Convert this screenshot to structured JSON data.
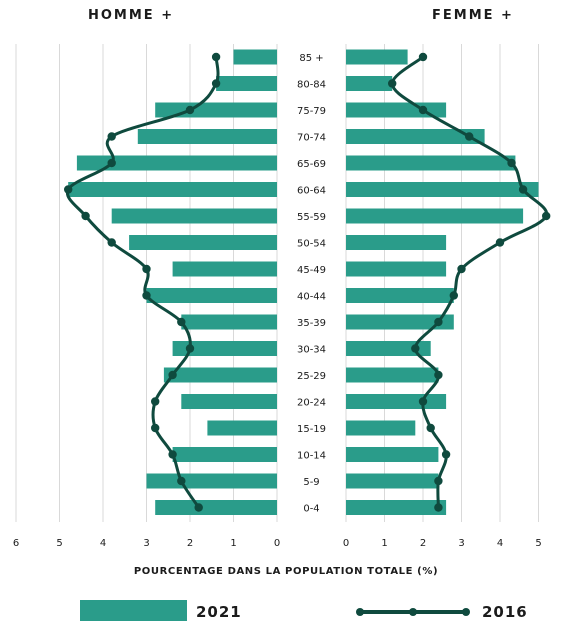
{
  "chart_data": {
    "type": "bar",
    "headers": {
      "left": "HOMME +",
      "right": "FEMME +"
    },
    "xlabel": "POURCENTAGE DANS LA POPULATION TOTALE (%)",
    "categories": [
      "85 +",
      "80-84",
      "75-79",
      "70-74",
      "65-69",
      "60-64",
      "55-59",
      "50-54",
      "45-49",
      "40-44",
      "35-39",
      "30-34",
      "25-29",
      "20-24",
      "15-19",
      "10-14",
      "5-9",
      "0-4"
    ],
    "left_ticks": [
      "6",
      "5",
      "4",
      "3",
      "2",
      "1",
      "0"
    ],
    "right_ticks": [
      "0",
      "1",
      "2",
      "3",
      "4",
      "5"
    ],
    "xlim_left": [
      0,
      6
    ],
    "xlim_right": [
      0,
      5.2
    ],
    "legend": {
      "bar_label": "2021",
      "line_label": "2016",
      "placement": "bottom"
    },
    "series": [
      {
        "name": "2021",
        "sex": "homme",
        "kind": "bar",
        "values": [
          1.0,
          1.4,
          2.8,
          3.2,
          4.6,
          4.8,
          3.8,
          3.4,
          2.4,
          3.0,
          2.2,
          2.4,
          2.6,
          2.2,
          1.6,
          2.4,
          3.0,
          2.8
        ]
      },
      {
        "name": "2021",
        "sex": "femme",
        "kind": "bar",
        "values": [
          1.6,
          1.2,
          2.6,
          3.6,
          4.4,
          5.0,
          4.6,
          2.6,
          2.6,
          2.8,
          2.8,
          2.2,
          2.4,
          2.6,
          1.8,
          2.4,
          2.4,
          2.6
        ]
      },
      {
        "name": "2016",
        "sex": "homme",
        "kind": "line",
        "values": [
          1.4,
          1.4,
          2.0,
          3.8,
          3.8,
          4.8,
          4.4,
          3.8,
          3.0,
          3.0,
          2.2,
          2.0,
          2.4,
          2.8,
          2.8,
          2.4,
          2.2,
          1.8
        ]
      },
      {
        "name": "2016",
        "sex": "femme",
        "kind": "line",
        "values": [
          2.0,
          1.2,
          2.0,
          3.2,
          4.3,
          4.6,
          5.2,
          4.0,
          3.0,
          2.8,
          2.4,
          1.8,
          2.4,
          2.0,
          2.2,
          2.6,
          2.4,
          2.4
        ]
      }
    ],
    "colors": {
      "bar": "#2a9c8a",
      "line": "#0f4a3e",
      "grid": "#d9d9d9",
      "text": "#1b1b1b"
    },
    "grid": true
  }
}
